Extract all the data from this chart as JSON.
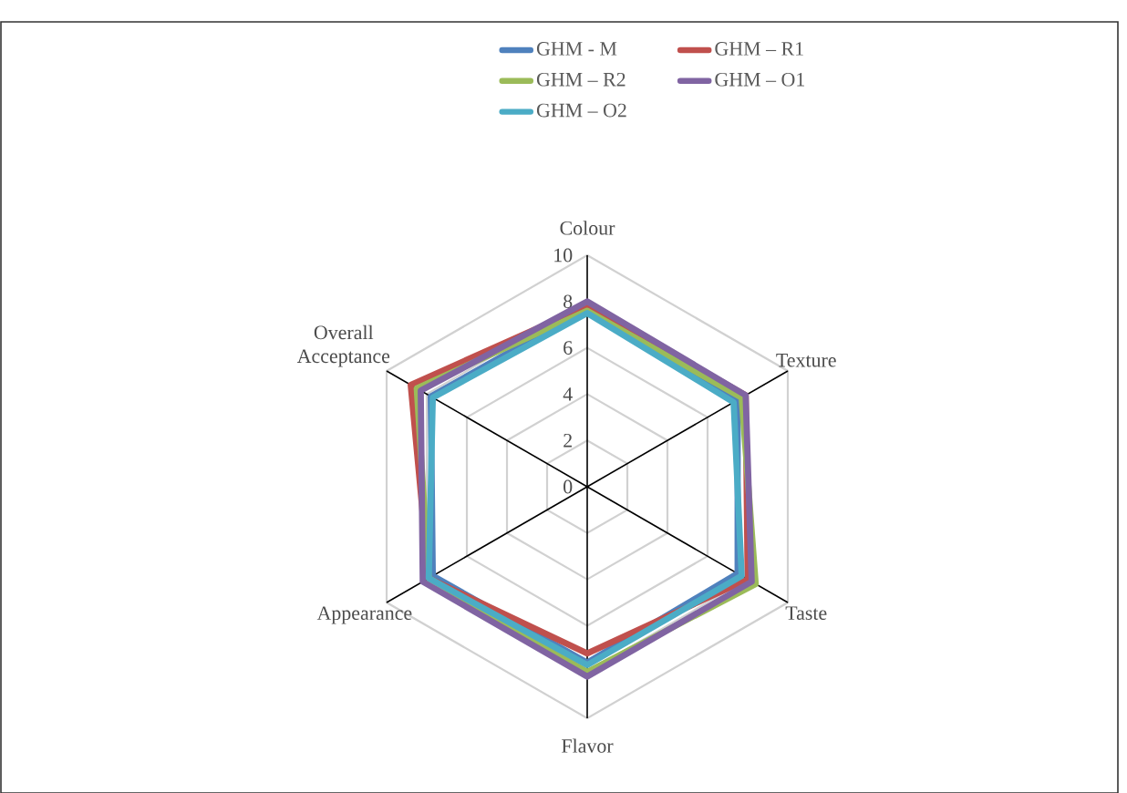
{
  "chart_data": {
    "type": "radar",
    "categories": [
      "Colour",
      "Texture",
      "Taste",
      "Flavor",
      "Appearance",
      "Overall Acceptance"
    ],
    "ylim": [
      0,
      10
    ],
    "yticks": [
      0,
      2,
      4,
      6,
      8,
      10
    ],
    "grid": true,
    "legend": "top",
    "marker": "none",
    "line_style": "solid",
    "series": [
      {
        "name": "GHM - M",
        "color": "#4f81bd",
        "values": [
          7.7,
          7.5,
          7.5,
          7.6,
          7.7,
          7.8
        ]
      },
      {
        "name": "GHM – R1",
        "color": "#c0504d",
        "values": [
          7.8,
          7.9,
          8.0,
          7.2,
          7.9,
          8.8
        ]
      },
      {
        "name": "GHM – R2",
        "color": "#9bbb59",
        "values": [
          7.6,
          7.7,
          8.4,
          8.0,
          7.9,
          8.5
        ]
      },
      {
        "name": "GHM – O1",
        "color": "#8064a2",
        "values": [
          8.0,
          7.9,
          8.2,
          8.2,
          8.2,
          8.3
        ]
      },
      {
        "name": "GHM – O2",
        "color": "#4bacc6",
        "values": [
          7.5,
          7.3,
          7.7,
          7.7,
          7.9,
          7.7
        ]
      }
    ]
  }
}
